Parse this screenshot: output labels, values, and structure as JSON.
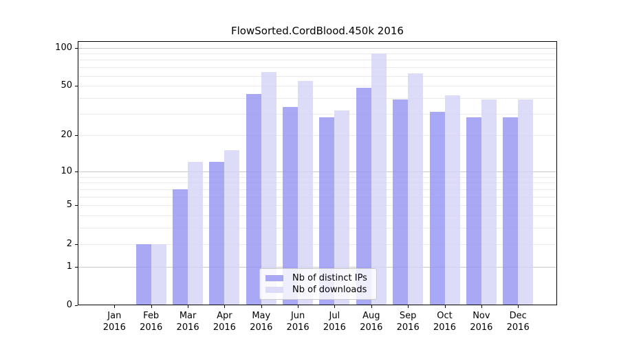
{
  "figure": {
    "title": "FlowSorted.CordBlood.450k 2016"
  },
  "chart_data": {
    "type": "bar",
    "title": "FlowSorted.CordBlood.450k 2016",
    "categories": [
      "Jan",
      "Feb",
      "Mar",
      "Apr",
      "May",
      "Jun",
      "Jul",
      "Aug",
      "Sep",
      "Oct",
      "Nov",
      "Dec"
    ],
    "category_year": "2016",
    "series": [
      {
        "name": "Nb of distinct IPs",
        "legend_color": "#a8a8f5",
        "bar_fill": "rgba(146,146,243,0.8)",
        "values": [
          0,
          2,
          7,
          12,
          43,
          34,
          28,
          48,
          39,
          31,
          28,
          28
        ]
      },
      {
        "name": "Nb of downloads",
        "legend_color": "#dcdcf8",
        "bar_fill": "rgba(211,211,246,0.8)",
        "values": [
          0,
          2,
          12,
          15,
          64,
          55,
          32,
          90,
          63,
          42,
          39,
          39
        ]
      }
    ],
    "yscale": "log10(1+value)",
    "yticks": [
      0,
      1,
      2,
      5,
      10,
      20,
      50,
      100
    ],
    "ytick_labels": [
      "0",
      "1",
      "2",
      "5",
      "10",
      "20",
      "50",
      "100"
    ],
    "minor_gridlines": [
      3,
      4,
      6,
      7,
      8,
      9,
      30,
      40,
      60,
      70,
      80,
      90
    ],
    "ylim": [
      0,
      112.5
    ],
    "grid": true,
    "legend_position": "lower center",
    "axis_color": "#000000",
    "major_grid_values": [
      1,
      10,
      100
    ],
    "major_grid_color": "#c9c9c9",
    "minor_grid_color": "#eaeaea"
  }
}
